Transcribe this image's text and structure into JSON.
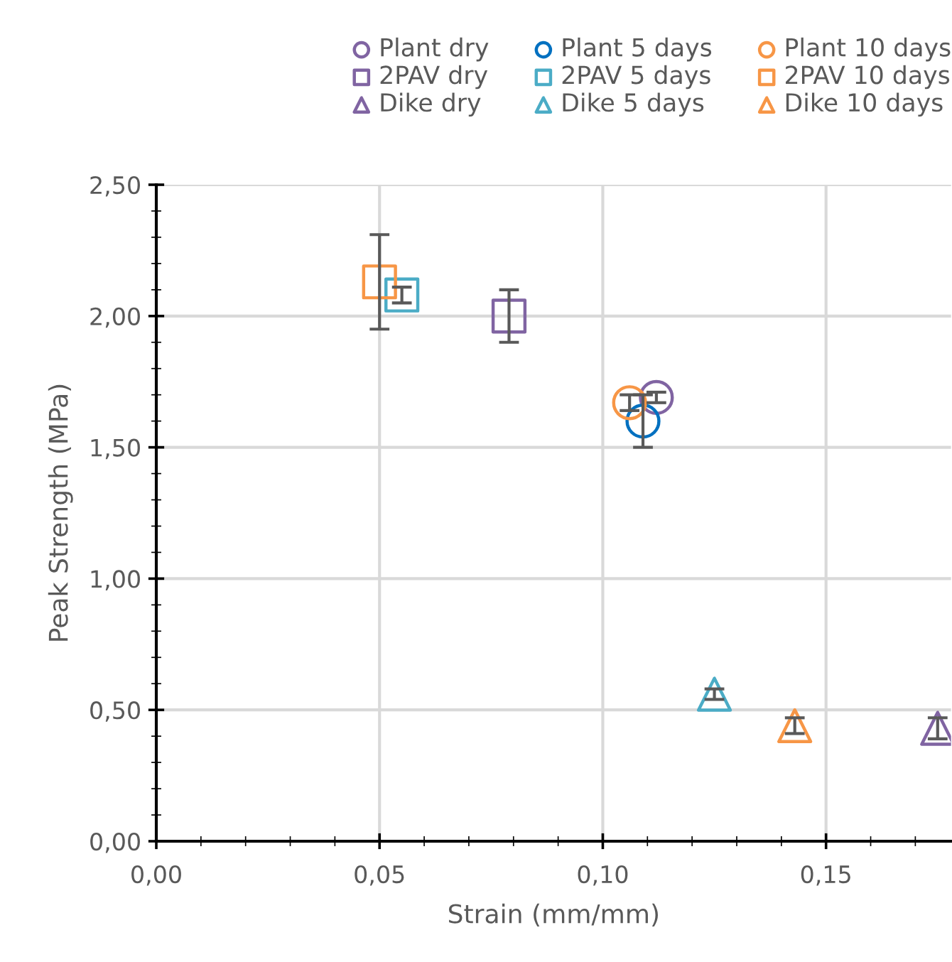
{
  "chart_data": {
    "type": "scatter",
    "xlabel": "Strain (mm/mm)",
    "ylabel": "Peak Strength (MPa)",
    "xlim": [
      0,
      0.178
    ],
    "ylim": [
      0,
      2.5
    ],
    "xticks": [
      {
        "value": 0,
        "label": "0,00"
      },
      {
        "value": 0.05,
        "label": "0,05"
      },
      {
        "value": 0.1,
        "label": "0,10"
      },
      {
        "value": 0.15,
        "label": "0,15"
      }
    ],
    "yticks": [
      {
        "value": 0,
        "label": "0,00"
      },
      {
        "value": 0.5,
        "label": "0,50"
      },
      {
        "value": 1,
        "label": "1,00"
      },
      {
        "value": 1.5,
        "label": "1,50"
      },
      {
        "value": 2,
        "label": "2,00"
      },
      {
        "value": 2.5,
        "label": "2,50"
      }
    ],
    "grid": true,
    "legend": "top",
    "series": [
      {
        "name": "Plant dry",
        "color": "#8064a2",
        "marker": "circle",
        "x": [
          0.112
        ],
        "values": [
          1.69
        ],
        "errors": [
          0.02
        ]
      },
      {
        "name": "Plant 5 days",
        "color": "#0070c0",
        "marker": "circle",
        "x": [
          0.109
        ],
        "values": [
          1.6
        ],
        "errors": [
          0.1
        ]
      },
      {
        "name": "Plant 10 days",
        "color": "#f79646",
        "marker": "circle",
        "x": [
          0.106
        ],
        "values": [
          1.67
        ],
        "errors": [
          0.03
        ]
      },
      {
        "name": "2PAV dry",
        "color": "#8064a2",
        "marker": "square",
        "x": [
          0.079
        ],
        "values": [
          2.0
        ],
        "errors": [
          0.1
        ]
      },
      {
        "name": "2PAV 5 days",
        "color": "#4bacc6",
        "marker": "square",
        "x": [
          0.055
        ],
        "values": [
          2.08
        ],
        "errors": [
          0.03
        ]
      },
      {
        "name": "2PAV 10 days",
        "color": "#f79646",
        "marker": "square",
        "x": [
          0.05
        ],
        "values": [
          2.13
        ],
        "errors": [
          0.18
        ]
      },
      {
        "name": "Dike dry",
        "color": "#8064a2",
        "marker": "triangle",
        "x": [
          0.175
        ],
        "values": [
          0.43
        ],
        "errors": [
          0.04
        ]
      },
      {
        "name": "Dike 5 days",
        "color": "#4bacc6",
        "marker": "triangle",
        "x": [
          0.125
        ],
        "values": [
          0.56
        ],
        "errors": [
          0.02
        ]
      },
      {
        "name": "Dike 10 days",
        "color": "#f79646",
        "marker": "triangle",
        "x": [
          0.143
        ],
        "values": [
          0.44
        ],
        "errors": [
          0.03
        ]
      }
    ]
  }
}
